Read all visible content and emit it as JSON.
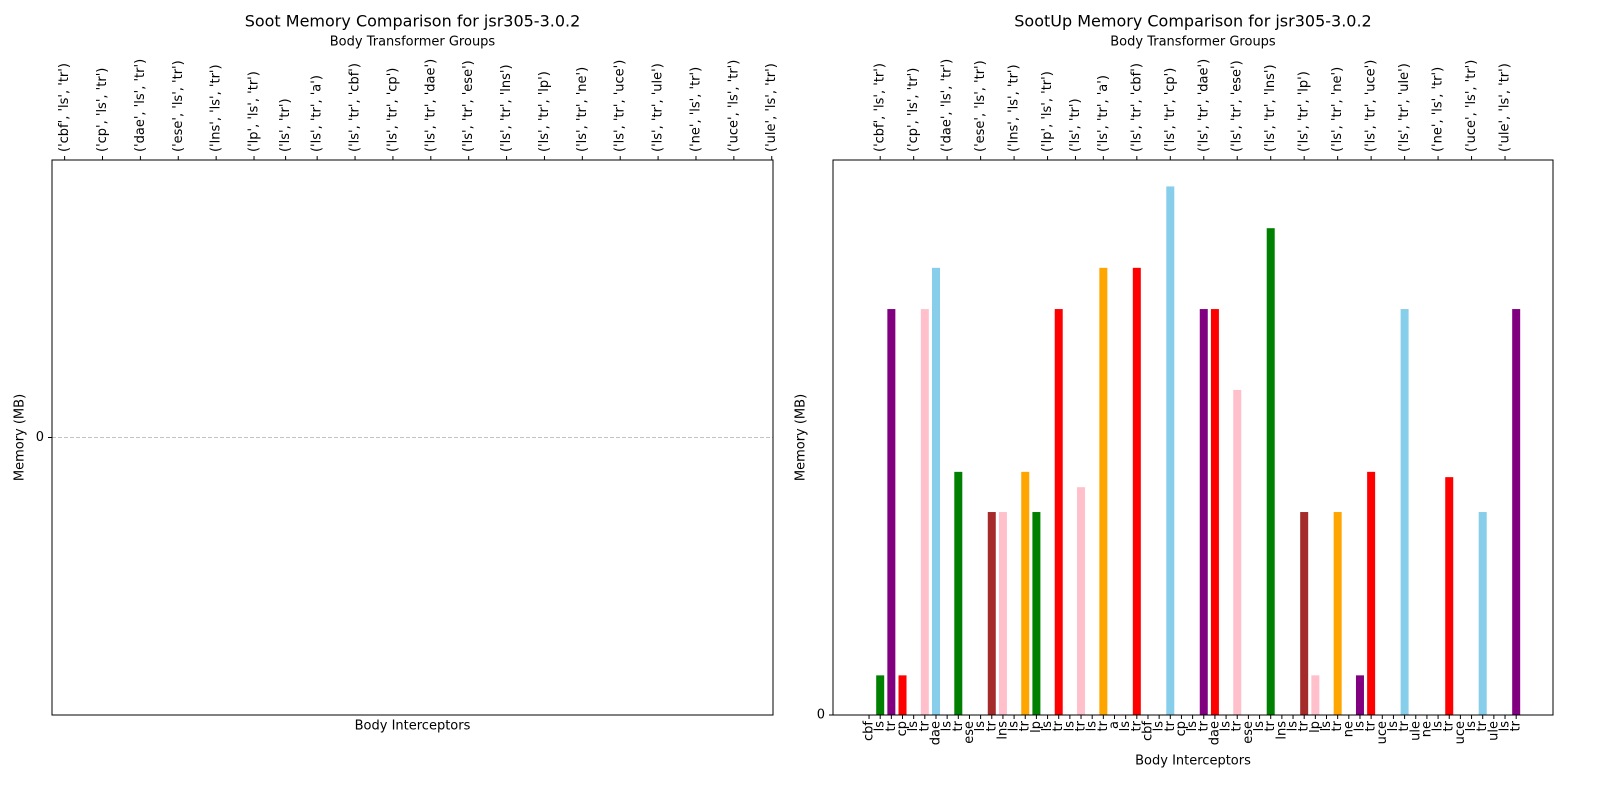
{
  "chart_data": [
    {
      "type": "bar",
      "title": "Soot Memory Comparison for jsr305-3.0.2",
      "top_label": "Body Transformer Groups",
      "groups": [
        "('cbf', 'ls', 'tr')",
        "('cp', 'ls', 'tr')",
        "('dae', 'ls', 'tr')",
        "('ese', 'ls', 'tr')",
        "('lns', 'ls', 'tr')",
        "('lp', 'ls', 'tr')",
        "('ls', 'tr')",
        "('ls', 'tr', 'a')",
        "('ls', 'tr', 'cbf')",
        "('ls', 'tr', 'cp')",
        "('ls', 'tr', 'dae')",
        "('ls', 'tr', 'ese')",
        "('ls', 'tr', 'lns')",
        "('ls', 'tr', 'lp')",
        "('ls', 'tr', 'ne')",
        "('ls', 'tr', 'uce')",
        "('ls', 'tr', 'ule')",
        "('ne', 'ls', 'tr')",
        "('uce', 'ls', 'tr')",
        "('ule', 'ls', 'tr')"
      ],
      "xlabel": "Body Interceptors",
      "ylabel": "Memory (MB)",
      "ylim": [
        -0.055,
        0.055
      ],
      "yticks": [
        0
      ],
      "grid": true
    },
    {
      "type": "bar",
      "title": "SootUp Memory Comparison for jsr305-3.0.2",
      "top_label": "Body Transformer Groups",
      "groups": [
        "('cbf', 'ls', 'tr')",
        "('cp', 'ls', 'tr')",
        "('dae', 'ls', 'tr')",
        "('ese', 'ls', 'tr')",
        "('lns', 'ls', 'tr')",
        "('lp', 'ls', 'tr')",
        "('ls', 'tr')",
        "('ls', 'tr', 'a')",
        "('ls', 'tr', 'cbf')",
        "('ls', 'tr', 'cp')",
        "('ls', 'tr', 'dae')",
        "('ls', 'tr', 'ese')",
        "('ls', 'tr', 'lns')",
        "('ls', 'tr', 'lp')",
        "('ls', 'tr', 'ne')",
        "('ls', 'tr', 'uce')",
        "('ls', 'tr', 'ule')",
        "('ne', 'ls', 'tr')",
        "('uce', 'ls', 'tr')",
        "('ule', 'ls', 'tr')"
      ],
      "xlabel": "Body Interceptors",
      "ylabel": "Memory (MB)",
      "categories": [
        "cbf",
        "ls",
        "tr",
        "cp",
        "ls",
        "tr",
        "dae",
        "ls",
        "tr",
        "ese",
        "ls",
        "tr",
        "lns",
        "ls",
        "tr",
        "lp",
        "ls",
        "tr",
        "ls",
        "tr",
        "ls",
        "tr",
        "a",
        "ls",
        "tr",
        "cbf",
        "ls",
        "tr",
        "cp",
        "ls",
        "tr",
        "dae",
        "ls",
        "tr",
        "ese",
        "ls",
        "tr",
        "lns",
        "ls",
        "tr",
        "lp",
        "ls",
        "tr",
        "ne",
        "ls",
        "tr",
        "uce",
        "ls",
        "tr",
        "ule",
        "ne",
        "ls",
        "tr",
        "uce",
        "ls",
        "tr",
        "ule",
        "ls",
        "tr"
      ],
      "values": [
        0,
        7.5,
        76.8,
        7.5,
        0,
        76.8,
        84.6,
        0,
        46.0,
        0,
        0,
        38.4,
        38.4,
        0,
        46.0,
        38.4,
        0,
        76.8,
        0,
        43.1,
        0,
        84.6,
        0,
        0,
        84.6,
        0,
        0,
        100,
        0,
        0,
        76.8,
        76.8,
        0,
        61.5,
        0,
        0,
        92.1,
        0,
        0,
        38.4,
        7.5,
        0,
        38.4,
        0,
        7.5,
        46.0,
        0,
        0,
        76.8,
        0,
        0,
        0,
        45.0,
        0,
        0,
        38.4,
        0,
        0,
        76.8
      ],
      "colors": [
        null,
        "green",
        "purple",
        "red",
        null,
        "pink",
        "skyblue",
        null,
        "green",
        null,
        null,
        "brown",
        "pink",
        null,
        "orange",
        "green",
        null,
        "red",
        null,
        "pink",
        null,
        "orange",
        null,
        null,
        "red",
        null,
        null,
        "skyblue",
        null,
        null,
        "purple",
        "red",
        null,
        "pink",
        null,
        null,
        "green",
        null,
        null,
        "brown",
        "pink",
        null,
        "orange",
        null,
        "purple",
        "red",
        null,
        null,
        "skyblue",
        null,
        null,
        null,
        "red",
        null,
        null,
        "skyblue",
        null,
        null,
        "purple"
      ],
      "ylim": [
        0,
        105
      ],
      "yticks": [
        0
      ],
      "grid": true
    }
  ]
}
